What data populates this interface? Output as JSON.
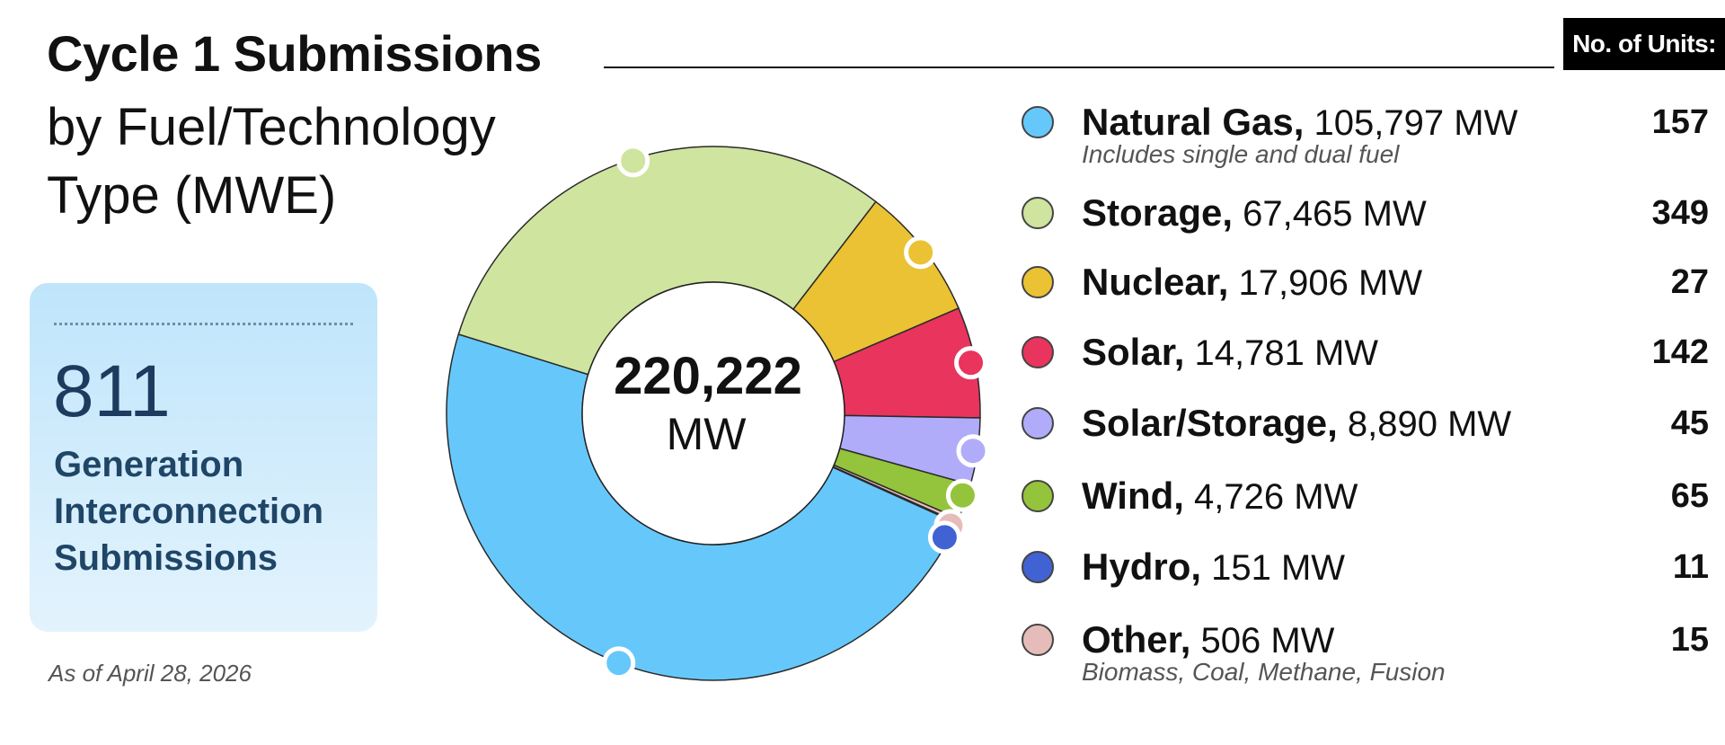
{
  "header": {
    "title": "Cycle 1 Submissions",
    "subtitle": "by Fuel/Technology Type (MWE)",
    "units_header": "No. of Units:"
  },
  "summary_card": {
    "count": "811",
    "label": "Generation Interconnection Submissions"
  },
  "as_of": "As of April 28, 2026",
  "center_total": {
    "value": "220,222",
    "unit": "MW"
  },
  "chart_data": {
    "type": "pie",
    "title": "Cycle 1 Submissions by Fuel/Technology Type (MWE)",
    "total_mw": 220222,
    "series": [
      {
        "name": "Natural Gas",
        "mw": 105797,
        "mw_label": "105,797 MW",
        "units": 157,
        "note": "Includes single and dual fuel",
        "color": "#66c8fa"
      },
      {
        "name": "Storage",
        "mw": 67465,
        "mw_label": "67,465 MW",
        "units": 349,
        "note": "",
        "color": "#cfe49f"
      },
      {
        "name": "Nuclear",
        "mw": 17906,
        "mw_label": "17,906 MW",
        "units": 27,
        "note": "",
        "color": "#eac233"
      },
      {
        "name": "Solar",
        "mw": 14781,
        "mw_label": "14,781 MW",
        "units": 142,
        "note": "",
        "color": "#e9345d"
      },
      {
        "name": "Solar/Storage",
        "mw": 8890,
        "mw_label": "8,890 MW",
        "units": 45,
        "note": "",
        "color": "#b0acfa"
      },
      {
        "name": "Wind",
        "mw": 4726,
        "mw_label": "4,726 MW",
        "units": 65,
        "note": "",
        "color": "#94c43b"
      },
      {
        "name": "Hydro",
        "mw": 151,
        "mw_label": "151 MW",
        "units": 11,
        "note": "",
        "color": "#4062d2"
      },
      {
        "name": "Other",
        "mw": 506,
        "mw_label": "506 MW",
        "units": 15,
        "note": "Biomass, Coal, Methane, Fusion",
        "color": "#e6bcba"
      }
    ]
  }
}
